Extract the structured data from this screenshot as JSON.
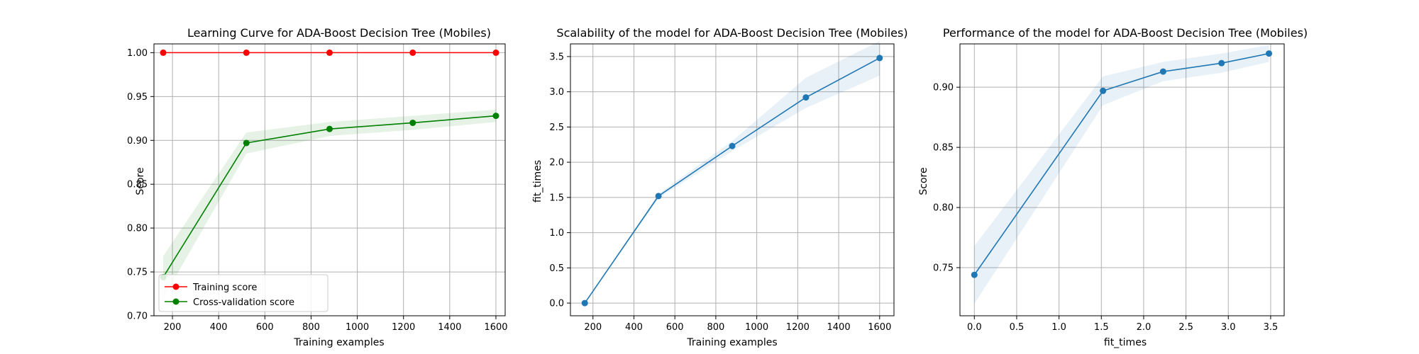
{
  "chart_data": [
    {
      "type": "line",
      "title": "Learning Curve for ADA-Boost Decision Tree (Mobiles)",
      "xlabel": "Training examples",
      "ylabel": "Score",
      "xlim": [
        120,
        1640
      ],
      "ylim": [
        0.7,
        1.01
      ],
      "xticks": [
        200,
        400,
        600,
        800,
        1000,
        1200,
        1400,
        1600
      ],
      "yticks": [
        0.7,
        0.75,
        0.8,
        0.85,
        0.9,
        0.95,
        1.0
      ],
      "xtick_labels": [
        "200",
        "400",
        "600",
        "800",
        "1000",
        "1200",
        "1400",
        "1600"
      ],
      "ytick_labels": [
        "0.70",
        "0.75",
        "0.80",
        "0.85",
        "0.90",
        "0.95",
        "1.00"
      ],
      "grid": true,
      "legend_position": "lower-left",
      "x": [
        160,
        520,
        880,
        1240,
        1600
      ],
      "series": [
        {
          "name": "Training score",
          "color": "#ff0000",
          "values": [
            1.0,
            1.0,
            1.0,
            1.0,
            1.0
          ],
          "band_lower": [
            1.0,
            1.0,
            1.0,
            1.0,
            1.0
          ],
          "band_upper": [
            1.0,
            1.0,
            1.0,
            1.0,
            1.0
          ]
        },
        {
          "name": "Cross-validation score",
          "color": "#008000",
          "values": [
            0.744,
            0.897,
            0.913,
            0.92,
            0.928
          ],
          "band_lower": [
            0.72,
            0.885,
            0.905,
            0.912,
            0.921
          ],
          "band_upper": [
            0.768,
            0.909,
            0.921,
            0.928,
            0.935
          ]
        }
      ]
    },
    {
      "type": "line",
      "title": "Scalability of the model for ADA-Boost Decision Tree (Mobiles)",
      "xlabel": "Training examples",
      "ylabel": "fit_times",
      "xlim": [
        90,
        1670
      ],
      "ylim": [
        -0.18,
        3.68
      ],
      "xticks": [
        200,
        400,
        600,
        800,
        1000,
        1200,
        1400,
        1600
      ],
      "yticks": [
        0.0,
        0.5,
        1.0,
        1.5,
        2.0,
        2.5,
        3.0,
        3.5
      ],
      "xtick_labels": [
        "200",
        "400",
        "600",
        "800",
        "1000",
        "1200",
        "1400",
        "1600"
      ],
      "ytick_labels": [
        "0.0",
        "0.5",
        "1.0",
        "1.5",
        "2.0",
        "2.5",
        "3.0",
        "3.5"
      ],
      "grid": true,
      "x": [
        160,
        520,
        880,
        1240,
        1600
      ],
      "series": [
        {
          "color": "#1f77b4",
          "values": [
            0.0,
            1.52,
            2.23,
            2.92,
            3.48
          ],
          "band_lower": [
            0.0,
            1.49,
            2.16,
            2.77,
            3.23
          ],
          "band_upper": [
            0.0,
            1.55,
            2.3,
            3.2,
            3.72
          ]
        }
      ]
    },
    {
      "type": "line",
      "title": "Performance of the model for ADA-Boost Decision Tree (Mobiles)",
      "xlabel": "fit_times",
      "ylabel": "Score",
      "xlim": [
        -0.17,
        3.66
      ],
      "ylim": [
        0.71,
        0.936
      ],
      "xticks": [
        0.0,
        0.5,
        1.0,
        1.5,
        2.0,
        2.5,
        3.0,
        3.5
      ],
      "yticks": [
        0.75,
        0.8,
        0.85,
        0.9
      ],
      "xtick_labels": [
        "0.0",
        "0.5",
        "1.0",
        "1.5",
        "2.0",
        "2.5",
        "3.0",
        "3.5"
      ],
      "ytick_labels": [
        "0.75",
        "0.80",
        "0.85",
        "0.90"
      ],
      "grid": true,
      "x": [
        0.0,
        1.52,
        2.23,
        2.92,
        3.48
      ],
      "series": [
        {
          "color": "#1f77b4",
          "values": [
            0.744,
            0.897,
            0.913,
            0.92,
            0.928
          ],
          "band_lower": [
            0.72,
            0.885,
            0.905,
            0.912,
            0.921
          ],
          "band_upper": [
            0.768,
            0.909,
            0.921,
            0.928,
            0.935
          ]
        }
      ]
    }
  ]
}
